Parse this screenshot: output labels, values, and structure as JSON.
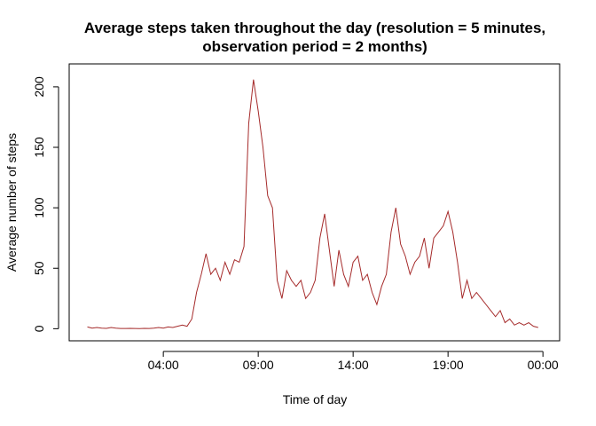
{
  "chart_data": {
    "type": "line",
    "title": [
      "Average steps taken throughout the day (resolution = 5 minutes,",
      "observation period = 2 months)"
    ],
    "x_label": "Time of day",
    "y_label": "Average number of steps",
    "x": [
      0,
      0.25,
      0.5,
      0.75,
      1,
      1.25,
      1.5,
      1.75,
      2,
      2.25,
      2.5,
      2.75,
      3,
      3.25,
      3.5,
      3.75,
      4,
      4.25,
      4.5,
      4.75,
      5,
      5.25,
      5.5,
      5.75,
      6,
      6.25,
      6.5,
      6.75,
      7,
      7.25,
      7.5,
      7.75,
      8,
      8.25,
      8.5,
      8.75,
      9,
      9.25,
      9.5,
      9.75,
      10,
      10.25,
      10.5,
      10.75,
      11,
      11.25,
      11.5,
      11.75,
      12,
      12.25,
      12.5,
      12.75,
      13,
      13.25,
      13.5,
      13.75,
      14,
      14.25,
      14.5,
      14.75,
      15,
      15.25,
      15.5,
      15.75,
      16,
      16.25,
      16.5,
      16.75,
      17,
      17.25,
      17.5,
      17.75,
      18,
      18.25,
      18.5,
      18.75,
      19,
      19.25,
      19.5,
      19.75,
      20,
      20.25,
      20.5,
      20.75,
      21,
      21.25,
      21.5,
      21.75,
      22,
      22.25,
      22.5,
      22.75,
      23,
      23.25,
      23.5,
      23.75
    ],
    "series": [
      {
        "name": "steps",
        "color": "#a52a2a",
        "values": [
          1.5,
          0.5,
          1,
          0.5,
          0.3,
          1,
          0.5,
          0.2,
          0.2,
          0.3,
          0.2,
          0.1,
          0.3,
          0.2,
          0.5,
          1,
          0.5,
          1.5,
          1,
          2,
          3,
          2,
          8,
          30,
          45,
          62,
          45,
          50,
          40,
          55,
          45,
          57,
          55,
          68,
          170,
          206,
          180,
          150,
          110,
          100,
          40,
          25,
          48,
          40,
          35,
          40,
          25,
          30,
          40,
          75,
          95,
          65,
          35,
          65,
          45,
          35,
          55,
          60,
          40,
          45,
          30,
          20,
          35,
          45,
          80,
          100,
          70,
          60,
          45,
          55,
          60,
          75,
          50,
          75,
          80,
          85,
          97,
          80,
          55,
          25,
          40,
          25,
          30,
          25,
          20,
          15,
          10,
          15,
          5,
          8,
          3,
          5,
          3,
          5,
          2,
          1
        ]
      }
    ],
    "xlim": [
      -0.96,
      24.88
    ],
    "ylim": [
      -10,
      219
    ],
    "xticks": [
      {
        "value": 4,
        "label": "04:00"
      },
      {
        "value": 9,
        "label": "09:00"
      },
      {
        "value": 14,
        "label": "14:00"
      },
      {
        "value": 19,
        "label": "19:00"
      },
      {
        "value": 24,
        "label": "00:00"
      }
    ],
    "yticks": [
      0,
      50,
      100,
      150,
      200
    ]
  }
}
